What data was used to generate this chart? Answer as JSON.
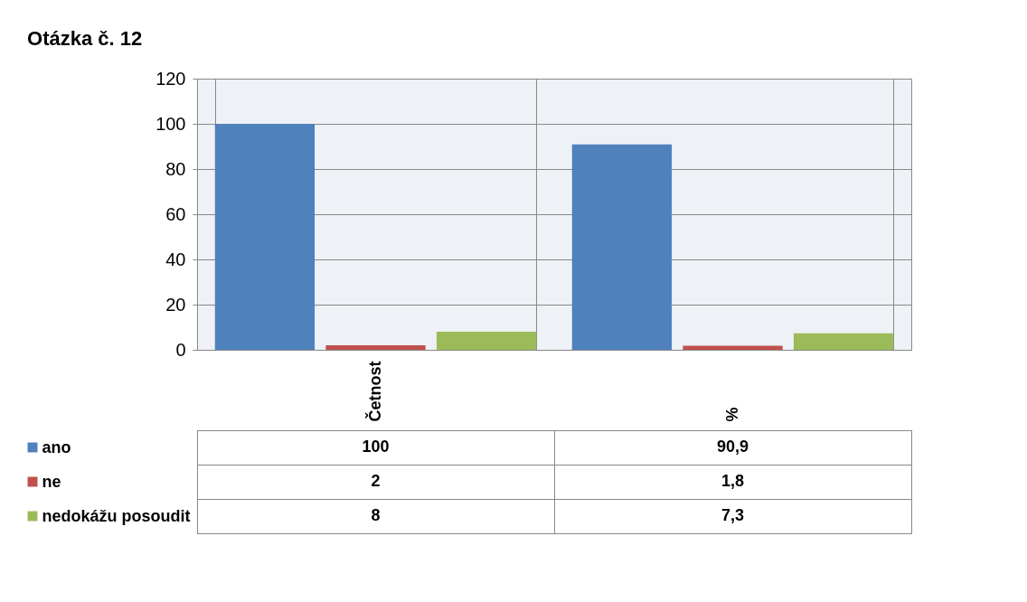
{
  "chart_data": {
    "type": "bar",
    "title": "Otázka č. 12",
    "categories": [
      "Četnost",
      "%"
    ],
    "series": [
      {
        "name": "ano",
        "color": "#4f81bd",
        "values": [
          100,
          90.9
        ],
        "value_labels": [
          "100",
          "90,9"
        ]
      },
      {
        "name": "ne",
        "color": "#c0504d",
        "values": [
          2,
          1.8
        ],
        "value_labels": [
          "2",
          "1,8"
        ]
      },
      {
        "name": "nedokážu posoudit",
        "color": "#9bbb59",
        "values": [
          8,
          7.3
        ],
        "value_labels": [
          "8",
          "7,3"
        ]
      }
    ],
    "ylim": [
      0,
      120
    ],
    "yticks": [
      0,
      20,
      40,
      60,
      80,
      100,
      120
    ],
    "grid": "y",
    "legend": "bottom"
  }
}
